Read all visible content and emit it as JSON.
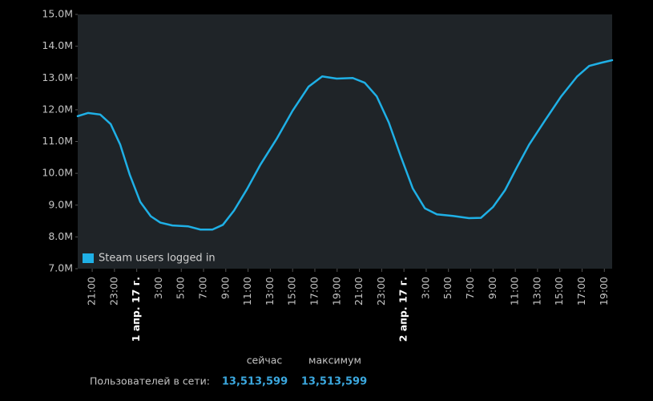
{
  "chart_data": {
    "type": "line",
    "x": [
      -4.3,
      -3.36,
      -2.28,
      -1.34,
      -0.48,
      0.38,
      1.32,
      2.26,
      3.12,
      4.2,
      5.64,
      6.72,
      7.8,
      8.74,
      9.74,
      10.9,
      12.12,
      13.56,
      15.0,
      16.44,
      17.66,
      18.24,
      18.96,
      20.4,
      21.48,
      22.56,
      23.64,
      24.72,
      25.8,
      26.88,
      27.96,
      29.4,
      30.84,
      31.92,
      33.0,
      34.08,
      35.16,
      36.24,
      37.68,
      39.12,
      40.56,
      41.64,
      42.72,
      43.7
    ],
    "series": [
      {
        "name": "Steam users logged in",
        "color": "#1fb0e6",
        "values": [
          11.8,
          11.9,
          11.85,
          11.55,
          10.9,
          9.95,
          9.1,
          8.65,
          8.45,
          8.36,
          8.33,
          8.23,
          8.23,
          8.38,
          8.83,
          9.5,
          10.28,
          11.08,
          11.97,
          12.73,
          13.05,
          13.02,
          12.98,
          13.0,
          12.85,
          12.42,
          11.6,
          10.53,
          9.52,
          8.9,
          8.71,
          8.66,
          8.59,
          8.6,
          8.94,
          9.47,
          10.2,
          10.9,
          11.67,
          12.42,
          13.05,
          13.38,
          13.48,
          13.56
        ]
      }
    ],
    "xlim": [
      -4.3,
      43.7
    ],
    "xticks": [
      {
        "value": -3,
        "label": "21:00"
      },
      {
        "value": -1,
        "label": "23:00"
      },
      {
        "value": 1,
        "label": "1 апр. 17 г."
      },
      {
        "value": 3,
        "label": "3:00"
      },
      {
        "value": 5,
        "label": "5:00"
      },
      {
        "value": 7,
        "label": "7:00"
      },
      {
        "value": 9,
        "label": "9:00"
      },
      {
        "value": 11,
        "label": "11:00"
      },
      {
        "value": 13,
        "label": "13:00"
      },
      {
        "value": 15,
        "label": "15:00"
      },
      {
        "value": 17,
        "label": "17:00"
      },
      {
        "value": 19,
        "label": "19:00"
      },
      {
        "value": 21,
        "label": "21:00"
      },
      {
        "value": 23,
        "label": "23:00"
      },
      {
        "value": 25,
        "label": "2 апр. 17 г."
      },
      {
        "value": 27,
        "label": "3:00"
      },
      {
        "value": 29,
        "label": "5:00"
      },
      {
        "value": 31,
        "label": "7:00"
      },
      {
        "value": 33,
        "label": "9:00"
      },
      {
        "value": 35,
        "label": "11:00"
      },
      {
        "value": 37,
        "label": "13:00"
      },
      {
        "value": 39,
        "label": "15:00"
      },
      {
        "value": 41,
        "label": "17:00"
      },
      {
        "value": 43,
        "label": "19:00"
      }
    ],
    "ylim": [
      7,
      15
    ],
    "yticks": [
      {
        "value": 7,
        "label": "7.0M"
      },
      {
        "value": 8,
        "label": "8.0M"
      },
      {
        "value": 9,
        "label": "9.0M"
      },
      {
        "value": 10,
        "label": "10.0M"
      },
      {
        "value": 11,
        "label": "11.0M"
      },
      {
        "value": 12,
        "label": "12.0M"
      },
      {
        "value": 13,
        "label": "13.0M"
      },
      {
        "value": 14,
        "label": "14.0M"
      },
      {
        "value": 15,
        "label": "15.0M"
      }
    ],
    "legend": "lower left"
  },
  "footer": {
    "now_header": "сейчас",
    "max_header": "максимум",
    "label": "Пользователей в сети:",
    "now": "13,513,599",
    "max": "13,513,599"
  }
}
